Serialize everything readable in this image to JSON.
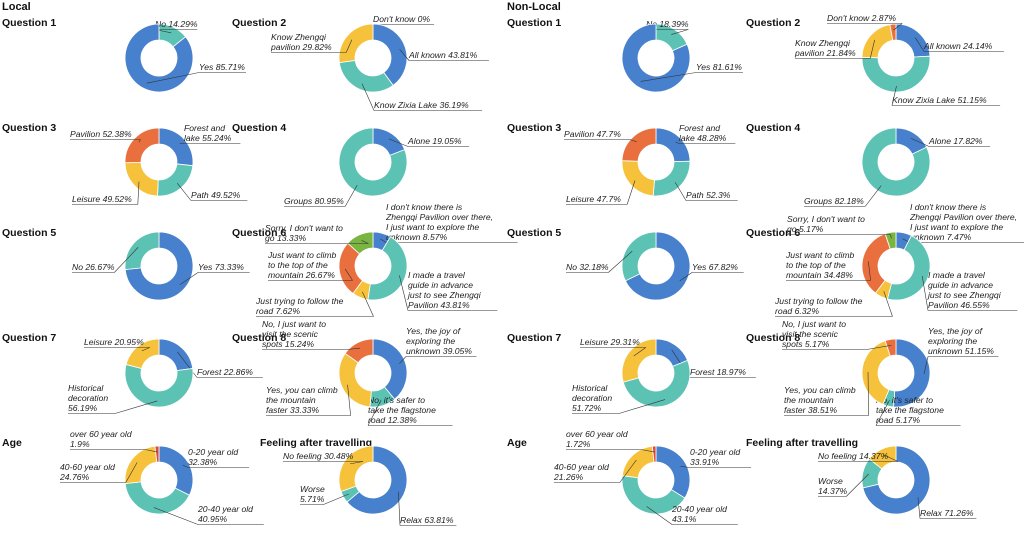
{
  "colors": {
    "blue": "#4780cc",
    "teal": "#5cc2b4",
    "yellow": "#f7c23b",
    "orange": "#e96f3f",
    "green": "#7ab542",
    "red": "#e04a3c"
  },
  "panels": [
    {
      "title": "Local"
    },
    {
      "title": "Non-Local"
    }
  ],
  "chart_data": [
    {
      "type": "pie",
      "title": "Question 1",
      "slices": [
        {
          "label": [
            "No 14.29%"
          ],
          "value": 14.29,
          "color": "teal"
        },
        {
          "label": [
            "Yes 85.71%"
          ],
          "value": 85.71,
          "color": "blue"
        }
      ]
    },
    {
      "type": "pie",
      "title": "Question 2",
      "slices": [
        {
          "label": [
            "Don't know 0%"
          ],
          "value": 0,
          "color": "orange"
        },
        {
          "label": [
            "All known  43.81%"
          ],
          "value": 43.81,
          "color": "blue"
        },
        {
          "label": [
            "Know Zixia Lake  36.19%"
          ],
          "value": 36.19,
          "color": "teal"
        },
        {
          "label": [
            "Know Zhengqi",
            "pavilion  29.82%"
          ],
          "value": 29.82,
          "color": "yellow"
        }
      ]
    },
    {
      "type": "pie",
      "title": "Question 3",
      "slices": [
        {
          "label": [
            "Forest and",
            "lake  55.24%"
          ],
          "value": 55.24,
          "color": "blue"
        },
        {
          "label": [
            "Path  49.52%"
          ],
          "value": 49.52,
          "color": "teal"
        },
        {
          "label": [
            "Leisure 49.52%"
          ],
          "value": 49.52,
          "color": "yellow"
        },
        {
          "label": [
            "Pavilion 52.38%"
          ],
          "value": 52.38,
          "color": "orange"
        }
      ]
    },
    {
      "type": "pie",
      "title": "Question 4",
      "slices": [
        {
          "label": [
            "Alone  19.05%"
          ],
          "value": 19.05,
          "color": "blue"
        },
        {
          "label": [
            "Groups 80.95%"
          ],
          "value": 80.95,
          "color": "teal"
        }
      ]
    },
    {
      "type": "pie",
      "title": "Question 5",
      "slices": [
        {
          "label": [
            "Yes  73.33%"
          ],
          "value": 73.33,
          "color": "blue"
        },
        {
          "label": [
            "No 26.67%"
          ],
          "value": 26.67,
          "color": "teal"
        }
      ]
    },
    {
      "type": "pie",
      "title": "Question 6",
      "slices": [
        {
          "label": [
            "I don't know there is",
            "Zhengqi Pavilion over there,",
            "I just want to explore the",
            "unknown 8.57%"
          ],
          "value": 8.57,
          "color": "blue"
        },
        {
          "label": [
            "I made a travel",
            "guide in advance",
            "just to see Zhengqi",
            "Pavilion 43.81%"
          ],
          "value": 43.81,
          "color": "teal"
        },
        {
          "label": [
            "Just trying to follow the",
            "road  7.62%"
          ],
          "value": 7.62,
          "color": "yellow"
        },
        {
          "label": [
            "Just want to climb",
            "to the top of the",
            "mountain 26.67%"
          ],
          "value": 26.67,
          "color": "orange"
        },
        {
          "label": [
            "Sorry, I don't want to",
            "go 13.33%"
          ],
          "value": 13.33,
          "color": "green"
        }
      ]
    },
    {
      "type": "pie",
      "title": "Question 7",
      "slices": [
        {
          "label": [
            "Forest  22.86%"
          ],
          "value": 22.86,
          "color": "blue"
        },
        {
          "label": [
            "Historical",
            "decoration",
            "56.19%"
          ],
          "value": 56.19,
          "color": "teal"
        },
        {
          "label": [
            "Leisure 20.95%"
          ],
          "value": 20.95,
          "color": "yellow"
        }
      ]
    },
    {
      "type": "pie",
      "title": "Question 8",
      "slices": [
        {
          "label": [
            "Yes, the joy of",
            "exploring the",
            "unknown 39.05%"
          ],
          "value": 39.05,
          "color": "blue"
        },
        {
          "label": [
            "No, it's safer to",
            "take the flagstone",
            "road 12.38%"
          ],
          "value": 12.38,
          "color": "teal"
        },
        {
          "label": [
            "Yes, you can climb",
            "the mountain",
            "faster 33.33%"
          ],
          "value": 33.33,
          "color": "yellow"
        },
        {
          "label": [
            "No, I just want to",
            "visit the scenic",
            "spots 15.24%"
          ],
          "value": 15.24,
          "color": "orange"
        }
      ]
    },
    {
      "type": "pie",
      "title": "Age",
      "slices": [
        {
          "label": [
            "0-20 year old",
            "32.38%"
          ],
          "value": 32.38,
          "color": "blue"
        },
        {
          "label": [
            "20-40 year old",
            "40.95%"
          ],
          "value": 40.95,
          "color": "teal"
        },
        {
          "label": [
            "40-60 year old",
            "24.76%"
          ],
          "value": 24.76,
          "color": "yellow"
        },
        {
          "label": [
            "over 60 year old",
            "1.9%"
          ],
          "value": 1.9,
          "color": "red"
        }
      ]
    },
    {
      "type": "pie",
      "title": "Feeling after travelling",
      "slices": [
        {
          "label": [
            "Relax 63.81%"
          ],
          "value": 63.81,
          "color": "blue"
        },
        {
          "label": [
            "Worse",
            "5.71%"
          ],
          "value": 5.71,
          "color": "teal"
        },
        {
          "label": [
            "No feeling 30.48%"
          ],
          "value": 30.48,
          "color": "yellow"
        }
      ]
    },
    {
      "type": "pie",
      "title": "Question 1",
      "slices": [
        {
          "label": [
            "No 18.39%"
          ],
          "value": 18.39,
          "color": "teal"
        },
        {
          "label": [
            "Yes 81.61%"
          ],
          "value": 81.61,
          "color": "blue"
        }
      ]
    },
    {
      "type": "pie",
      "title": "Question 2",
      "slices": [
        {
          "label": [
            "All known  24.14%"
          ],
          "value": 24.14,
          "color": "blue"
        },
        {
          "label": [
            "Know Zixia Lake  51.15%"
          ],
          "value": 51.15,
          "color": "teal"
        },
        {
          "label": [
            "Know Zhengqi",
            "pavilion  21.84%"
          ],
          "value": 21.84,
          "color": "yellow"
        },
        {
          "label": [
            "Don't know 2.87%"
          ],
          "value": 2.87,
          "color": "orange"
        }
      ]
    },
    {
      "type": "pie",
      "title": "Question 3",
      "slices": [
        {
          "label": [
            "Forest and",
            "lake  48.28%"
          ],
          "value": 48.28,
          "color": "blue"
        },
        {
          "label": [
            "Path  52.3%"
          ],
          "value": 52.3,
          "color": "teal"
        },
        {
          "label": [
            "Leisure 47.7%"
          ],
          "value": 47.7,
          "color": "yellow"
        },
        {
          "label": [
            "Pavilion 47.7%"
          ],
          "value": 47.7,
          "color": "orange"
        }
      ]
    },
    {
      "type": "pie",
      "title": "Question 4",
      "slices": [
        {
          "label": [
            "Alone  17.82%"
          ],
          "value": 17.82,
          "color": "blue"
        },
        {
          "label": [
            "Groups 82.18%"
          ],
          "value": 82.18,
          "color": "teal"
        }
      ]
    },
    {
      "type": "pie",
      "title": "Question 5",
      "slices": [
        {
          "label": [
            "Yes  67.82%"
          ],
          "value": 67.82,
          "color": "blue"
        },
        {
          "label": [
            "No 32.18%"
          ],
          "value": 32.18,
          "color": "teal"
        }
      ]
    },
    {
      "type": "pie",
      "title": "Question 6",
      "slices": [
        {
          "label": [
            "I don't know there is",
            "Zhengqi Pavilion over there,",
            "I just want to explore the",
            "unknown 7.47%"
          ],
          "value": 7.47,
          "color": "blue"
        },
        {
          "label": [
            "I made a travel",
            "guide in advance",
            "just to see Zhengqi",
            "Pavilion 46.55%"
          ],
          "value": 46.55,
          "color": "teal"
        },
        {
          "label": [
            "Just trying to follow the",
            "road  6.32%"
          ],
          "value": 6.32,
          "color": "yellow"
        },
        {
          "label": [
            "Just want to climb",
            "to the top of the",
            "mountain 34.48%"
          ],
          "value": 34.48,
          "color": "orange"
        },
        {
          "label": [
            "Sorry, I don't want to",
            "go 5.17%"
          ],
          "value": 5.17,
          "color": "green"
        }
      ]
    },
    {
      "type": "pie",
      "title": "Question 7",
      "slices": [
        {
          "label": [
            "Forest  18.97%"
          ],
          "value": 18.97,
          "color": "blue"
        },
        {
          "label": [
            "Historical",
            "decoration",
            "51.72%"
          ],
          "value": 51.72,
          "color": "teal"
        },
        {
          "label": [
            "Leisure 29.31%"
          ],
          "value": 29.31,
          "color": "yellow"
        }
      ]
    },
    {
      "type": "pie",
      "title": "Question 8",
      "slices": [
        {
          "label": [
            "Yes, the joy of",
            "exploring the",
            "unknown 51.15%"
          ],
          "value": 51.15,
          "color": "blue"
        },
        {
          "label": [
            "No, it's safer to",
            "take the flagstone",
            "road 5.17%"
          ],
          "value": 5.17,
          "color": "teal"
        },
        {
          "label": [
            "Yes, you can climb",
            "the mountain",
            "faster 38.51%"
          ],
          "value": 38.51,
          "color": "yellow"
        },
        {
          "label": [
            "No, I just want to",
            "visit the scenic",
            "spots 5.17%"
          ],
          "value": 5.17,
          "color": "orange"
        }
      ]
    },
    {
      "type": "pie",
      "title": "Age",
      "slices": [
        {
          "label": [
            "0-20 year old",
            "33.91%"
          ],
          "value": 33.91,
          "color": "blue"
        },
        {
          "label": [
            "20-40 year old",
            "43.1%"
          ],
          "value": 43.1,
          "color": "teal"
        },
        {
          "label": [
            "40-60 year old",
            "21.26%"
          ],
          "value": 21.26,
          "color": "yellow"
        },
        {
          "label": [
            "over 60 year old",
            "1.72%"
          ],
          "value": 1.72,
          "color": "red"
        }
      ]
    },
    {
      "type": "pie",
      "title": "Feeling after travelling",
      "slices": [
        {
          "label": [
            "Relax 71.26%"
          ],
          "value": 71.26,
          "color": "blue"
        },
        {
          "label": [
            "Worse",
            "14.37%"
          ],
          "value": 14.37,
          "color": "teal"
        },
        {
          "label": [
            "No feeling 14.37%"
          ],
          "value": 14.37,
          "color": "yellow"
        }
      ]
    }
  ]
}
